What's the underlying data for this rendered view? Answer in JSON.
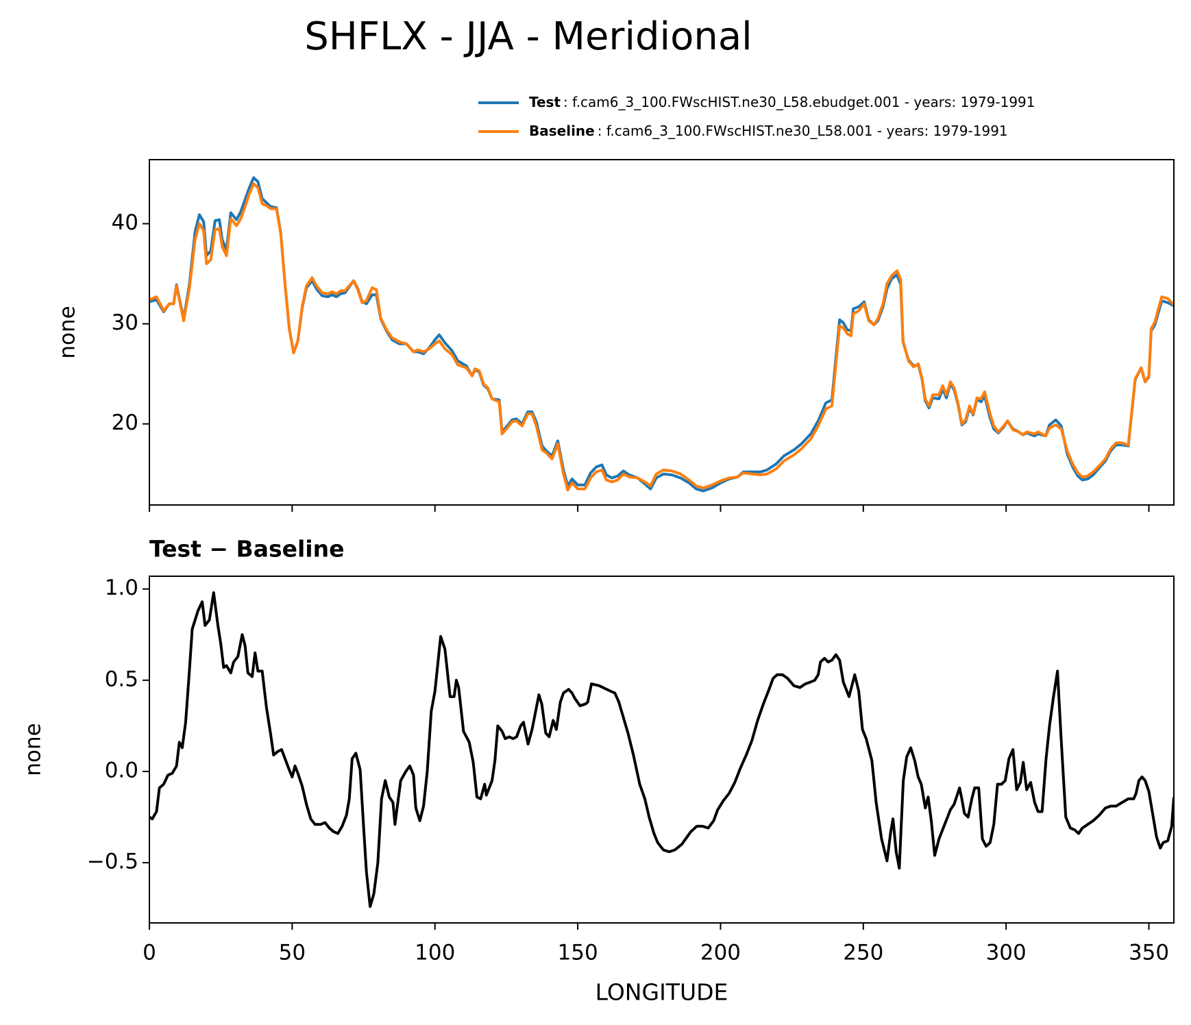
{
  "chart_data": [
    {
      "type": "line",
      "title": "SHFLX - JJA - Meridional",
      "ylabel": "none",
      "xlim": [
        0,
        358.75
      ],
      "xticks": [
        0,
        50,
        100,
        150,
        200,
        250,
        300,
        350
      ],
      "ylim": [
        11.9,
        46.4
      ],
      "yticks": [
        20,
        30,
        40
      ],
      "x": [
        0,
        2.5,
        5,
        7,
        8.5,
        9.5,
        12,
        14,
        16,
        17.5,
        19,
        20,
        21.5,
        23,
        24.5,
        25.5,
        27,
        28.5,
        30.5,
        32,
        33.5,
        35,
        36.5,
        38,
        39.5,
        41,
        42.5,
        44.5,
        46,
        47.5,
        49,
        50.5,
        52,
        53.5,
        55,
        57,
        58.5,
        60.5,
        62.5,
        64,
        65.5,
        67,
        68.5,
        70,
        71.5,
        73,
        74.5,
        76,
        78,
        79.5,
        81,
        83,
        85,
        87.5,
        90,
        92.5,
        94,
        96,
        98,
        100,
        101.5,
        103.5,
        106,
        108,
        111,
        113,
        114,
        115.5,
        117,
        118.5,
        120,
        122.5,
        123.5,
        125,
        127,
        128.5,
        130.5,
        132.5,
        134,
        135.5,
        137.5,
        139,
        141,
        143,
        145,
        146.5,
        148,
        150,
        152.5,
        154.5,
        156.5,
        158.5,
        160,
        162,
        164,
        166,
        168,
        171,
        173.5,
        175.5,
        177.5,
        180,
        183,
        186,
        189,
        191.5,
        194,
        197,
        200,
        203,
        206,
        208,
        211,
        214,
        216.3,
        219.5,
        222.2,
        225.7,
        228.3,
        231.6,
        234.2,
        236.9,
        239,
        240.4,
        241.7,
        243,
        244.4,
        245.7,
        246.5,
        248.4,
        250.3,
        251.9,
        253.7,
        255.1,
        256.9,
        258.3,
        259.9,
        261.8,
        263.1,
        263.9,
        265.8,
        267.6,
        269.3,
        270.6,
        271.7,
        273,
        274.3,
        276.5,
        277.8,
        279.1,
        280.5,
        281.8,
        283.2,
        284.5,
        285.8,
        287.2,
        288.5,
        289.8,
        291.2,
        292.5,
        294.4,
        295.7,
        297.3,
        299.2,
        300.5,
        302.4,
        304.5,
        305.9,
        307.2,
        309.9,
        311.2,
        313.9,
        315.2,
        317.4,
        319.3,
        321.4,
        323.3,
        325.1,
        326.7,
        328.6,
        330.5,
        332.6,
        334.8,
        336.6,
        338.5,
        340.6,
        342.8,
        345.2,
        347.3,
        348.7,
        350,
        350.8,
        352.1,
        354.5,
        356.7,
        358.75
      ],
      "series": [
        {
          "name": "Test",
          "label": ": f.cam6_3_100.FWscHIST.ne30_L58.ebudget.001 - years: 1979-1991",
          "color": "#1f77b4",
          "values": [
            32.2,
            32.4,
            31.2,
            32.0,
            32.0,
            33.9,
            30.5,
            33.9,
            39.2,
            40.9,
            40.2,
            36.8,
            37.3,
            40.3,
            40.4,
            38.4,
            37.4,
            41.1,
            40.4,
            41.2,
            42.4,
            43.6,
            44.6,
            44.2,
            42.5,
            42.1,
            41.7,
            41.6,
            39.1,
            34.0,
            29.5,
            27.1,
            28.3,
            31.6,
            33.6,
            34.3,
            33.5,
            32.8,
            32.7,
            32.9,
            32.7,
            33.0,
            33.1,
            33.7,
            34.3,
            33.5,
            32.2,
            32.0,
            32.9,
            32.9,
            30.5,
            29.3,
            28.4,
            28.0,
            28.0,
            27.2,
            27.2,
            27.0,
            27.6,
            28.4,
            28.9,
            28.1,
            27.3,
            26.3,
            25.8,
            24.8,
            25.4,
            25.2,
            23.9,
            23.5,
            22.5,
            22.4,
            19.2,
            19.7,
            20.4,
            20.5,
            20.0,
            21.2,
            21.2,
            20.2,
            17.8,
            17.3,
            16.8,
            18.3,
            15.4,
            13.8,
            14.5,
            13.9,
            13.9,
            15.1,
            15.7,
            15.9,
            14.9,
            14.6,
            14.8,
            15.3,
            14.9,
            14.6,
            14.0,
            13.5,
            14.6,
            15.0,
            14.9,
            14.6,
            14.1,
            13.5,
            13.3,
            13.6,
            14.1,
            14.5,
            14.7,
            15.2,
            15.2,
            15.2,
            15.4,
            16.0,
            16.8,
            17.4,
            18.0,
            19.0,
            20.3,
            22.1,
            22.4,
            26.6,
            30.4,
            30.1,
            29.4,
            29.3,
            31.5,
            31.7,
            32.2,
            30.4,
            29.9,
            30.3,
            31.7,
            33.5,
            34.5,
            34.9,
            33.9,
            28.2,
            26.4,
            25.8,
            25.9,
            24.4,
            22.3,
            21.6,
            22.6,
            22.5,
            23.5,
            22.6,
            24.0,
            23.4,
            21.9,
            19.9,
            20.2,
            21.6,
            20.9,
            22.5,
            22.2,
            22.8,
            20.6,
            19.5,
            19.1,
            19.7,
            20.3,
            19.5,
            19.2,
            18.9,
            19.1,
            18.8,
            19.0,
            18.8,
            19.9,
            20.4,
            19.8,
            17.0,
            15.7,
            14.8,
            14.4,
            14.5,
            14.9,
            15.6,
            16.3,
            17.3,
            17.9,
            17.9,
            17.8,
            24.4,
            25.6,
            24.2,
            24.7,
            29.3,
            29.9,
            32.3,
            32.1,
            31.8
          ]
        },
        {
          "name": "Baseline",
          "label": ": f.cam6_3_100.FWscHIST.ne30_L58.001 - years: 1979-1991",
          "color": "#ff7f0e",
          "values": [
            32.4,
            32.7,
            31.3,
            32.0,
            32.0,
            33.8,
            30.3,
            33.5,
            38.4,
            40.0,
            39.3,
            36.0,
            36.4,
            39.4,
            39.5,
            37.7,
            36.8,
            40.5,
            39.8,
            40.5,
            41.7,
            43.0,
            44.0,
            43.6,
            42.0,
            41.8,
            41.5,
            41.5,
            39.0,
            34.0,
            29.5,
            27.1,
            28.3,
            31.7,
            33.8,
            34.6,
            33.8,
            33.1,
            33.0,
            33.2,
            33.0,
            33.3,
            33.3,
            33.8,
            34.3,
            33.4,
            32.1,
            32.3,
            33.6,
            33.4,
            30.6,
            29.4,
            28.6,
            28.2,
            28.0,
            27.2,
            27.4,
            27.2,
            27.5,
            28.0,
            28.3,
            27.5,
            26.9,
            25.9,
            25.6,
            24.8,
            25.5,
            25.3,
            24.0,
            23.6,
            22.5,
            22.2,
            19.0,
            19.5,
            20.2,
            20.3,
            19.8,
            21.0,
            21.0,
            19.8,
            17.4,
            17.1,
            16.5,
            18.0,
            15.0,
            13.4,
            14.1,
            13.5,
            13.5,
            14.6,
            15.2,
            15.4,
            14.4,
            14.2,
            14.4,
            15.0,
            14.7,
            14.6,
            14.2,
            13.8,
            15.0,
            15.4,
            15.3,
            15.0,
            14.4,
            13.8,
            13.6,
            13.9,
            14.3,
            14.6,
            14.7,
            15.1,
            15.0,
            14.9,
            15.0,
            15.5,
            16.3,
            16.9,
            17.5,
            18.5,
            19.8,
            21.5,
            21.8,
            26.0,
            29.8,
            29.6,
            29.0,
            28.8,
            31.0,
            31.3,
            32.0,
            30.3,
            29.9,
            30.5,
            32.0,
            34.0,
            34.8,
            35.3,
            34.4,
            28.3,
            26.3,
            25.7,
            26.0,
            24.5,
            22.5,
            21.8,
            22.9,
            22.9,
            23.8,
            22.9,
            24.2,
            23.6,
            22.0,
            20.0,
            20.4,
            21.8,
            21.0,
            22.6,
            22.5,
            23.2,
            21.0,
            19.8,
            19.2,
            19.8,
            20.3,
            19.4,
            19.2,
            18.9,
            19.2,
            19.0,
            19.2,
            18.8,
            19.6,
            19.9,
            19.5,
            17.3,
            16.0,
            15.1,
            14.7,
            14.8,
            15.2,
            15.8,
            16.5,
            17.5,
            18.1,
            18.1,
            17.9,
            24.5,
            25.6,
            24.2,
            24.8,
            29.5,
            30.2,
            32.7,
            32.5,
            31.9
          ]
        }
      ]
    },
    {
      "type": "line",
      "title": "Test − Baseline",
      "ylabel": "none",
      "xlabel": "LONGITUDE",
      "color": "#000000",
      "xlim": [
        0,
        358.75
      ],
      "xticks": [
        0,
        50,
        100,
        150,
        200,
        250,
        300,
        350
      ],
      "ylim": [
        -0.83,
        1.07
      ],
      "yticks": [
        {
          "value": -0.5,
          "label": "−0.5"
        },
        {
          "value": 0,
          "label": "0.0"
        },
        {
          "value": 0.5,
          "label": "0.5"
        },
        {
          "value": 1,
          "label": "1.0"
        }
      ],
      "x": [
        0,
        1,
        2.5,
        3.5,
        5,
        6.5,
        8,
        9.5,
        10.5,
        11.5,
        12.7,
        14,
        15,
        17,
        18.5,
        19.5,
        21,
        22.5,
        24,
        25,
        26,
        27,
        28.5,
        29.5,
        31,
        32.5,
        33.5,
        34.5,
        36,
        37,
        38,
        39.5,
        41,
        42.5,
        43.5,
        45,
        46.3,
        47.5,
        48.7,
        50,
        51,
        52,
        53.5,
        55,
        56.5,
        58,
        60,
        61.5,
        63,
        64.5,
        66,
        67.5,
        69,
        70,
        71,
        72.3,
        73.8,
        75,
        76,
        77.3,
        78.6,
        80,
        81.3,
        82.6,
        84,
        85.3,
        86,
        88,
        89.8,
        91.2,
        92.5,
        93.3,
        94.7,
        96,
        97.3,
        98.7,
        100,
        102,
        103.5,
        105.3,
        106.7,
        107.5,
        108.3,
        110,
        112,
        113.4,
        114.7,
        116,
        117.4,
        118,
        120,
        121,
        122,
        123.5,
        124.6,
        126,
        127.3,
        128.6,
        130,
        131,
        132.6,
        134,
        136.4,
        137.4,
        138.8,
        140,
        141.4,
        142.5,
        143.9,
        145,
        146.8,
        148,
        149,
        150.8,
        152.7,
        153.5,
        154.8,
        157.5,
        161.5,
        163,
        164.4,
        167.6,
        169.5,
        171.7,
        173.5,
        175,
        176.7,
        178,
        180,
        182,
        184,
        186.4,
        189.6,
        191.7,
        193.6,
        195.7,
        197.6,
        199,
        201,
        203,
        205,
        207,
        209,
        211,
        213,
        215,
        217,
        218.4,
        219.8,
        221.7,
        223.5,
        225.7,
        227.8,
        229.7,
        231.5,
        233,
        234.2,
        235,
        236.4,
        237.7,
        239,
        240.4,
        241.7,
        243,
        245,
        246.5,
        247,
        248.4,
        249.7,
        251,
        253,
        254.5,
        256.4,
        258.3,
        259.6,
        260.4,
        261.5,
        262.6,
        264,
        265.2,
        266.6,
        268,
        269.2,
        270.3,
        271.7,
        272.7,
        273.8,
        275,
        276.5,
        278,
        279,
        280.5,
        281.8,
        283.7,
        284.5,
        285.4,
        286.7,
        288,
        289,
        290.4,
        291.7,
        293,
        294.4,
        295.7,
        297,
        298.4,
        299.7,
        301,
        302.4,
        303.7,
        305,
        306,
        307.2,
        308.6,
        310,
        311.2,
        312.6,
        314,
        315.2,
        316.6,
        318,
        319.2,
        320.9,
        322.5,
        324,
        325.4,
        326.7,
        328.6,
        330.5,
        332.6,
        334.8,
        336.6,
        338.5,
        340.6,
        342.8,
        344.7,
        345.5,
        346.5,
        347.6,
        348.7,
        350,
        351.3,
        352.7,
        354,
        355,
        356.6,
        358,
        358.75
      ],
      "values": [
        -0.25,
        -0.26,
        -0.22,
        -0.09,
        -0.07,
        -0.02,
        -0.01,
        0.03,
        0.16,
        0.13,
        0.27,
        0.55,
        0.78,
        0.88,
        0.93,
        0.8,
        0.83,
        0.98,
        0.8,
        0.7,
        0.57,
        0.58,
        0.54,
        0.6,
        0.63,
        0.75,
        0.69,
        0.54,
        0.52,
        0.65,
        0.55,
        0.55,
        0.35,
        0.2,
        0.09,
        0.11,
        0.12,
        0.07,
        0.02,
        -0.03,
        0.03,
        -0.01,
        -0.08,
        -0.18,
        -0.26,
        -0.29,
        -0.29,
        -0.28,
        -0.31,
        -0.33,
        -0.34,
        -0.3,
        -0.24,
        -0.15,
        0.07,
        0.1,
        0.01,
        -0.3,
        -0.55,
        -0.74,
        -0.67,
        -0.5,
        -0.15,
        -0.05,
        -0.14,
        -0.17,
        -0.29,
        -0.05,
        0.0,
        0.03,
        -0.02,
        -0.2,
        -0.27,
        -0.19,
        0.0,
        0.33,
        0.44,
        0.74,
        0.67,
        0.41,
        0.41,
        0.5,
        0.46,
        0.22,
        0.16,
        0.05,
        -0.14,
        -0.15,
        -0.07,
        -0.13,
        -0.05,
        0.06,
        0.25,
        0.22,
        0.18,
        0.19,
        0.18,
        0.19,
        0.25,
        0.27,
        0.15,
        0.23,
        0.42,
        0.37,
        0.21,
        0.19,
        0.28,
        0.23,
        0.38,
        0.43,
        0.45,
        0.43,
        0.4,
        0.36,
        0.37,
        0.38,
        0.48,
        0.47,
        0.44,
        0.43,
        0.38,
        0.21,
        0.09,
        -0.07,
        -0.15,
        -0.25,
        -0.34,
        -0.39,
        -0.43,
        -0.44,
        -0.43,
        -0.4,
        -0.33,
        -0.3,
        -0.3,
        -0.31,
        -0.27,
        -0.21,
        -0.16,
        -0.12,
        -0.06,
        0.02,
        0.09,
        0.17,
        0.28,
        0.37,
        0.45,
        0.51,
        0.53,
        0.53,
        0.51,
        0.47,
        0.46,
        0.48,
        0.49,
        0.5,
        0.53,
        0.6,
        0.62,
        0.6,
        0.61,
        0.64,
        0.61,
        0.49,
        0.41,
        0.5,
        0.53,
        0.44,
        0.23,
        0.18,
        0.06,
        -0.17,
        -0.37,
        -0.49,
        -0.33,
        -0.26,
        -0.44,
        -0.53,
        -0.05,
        0.08,
        0.13,
        0.06,
        -0.03,
        -0.07,
        -0.2,
        -0.14,
        -0.27,
        -0.46,
        -0.37,
        -0.31,
        -0.27,
        -0.21,
        -0.18,
        -0.09,
        -0.15,
        -0.23,
        -0.25,
        -0.15,
        -0.09,
        -0.09,
        -0.37,
        -0.41,
        -0.39,
        -0.29,
        -0.07,
        -0.07,
        -0.05,
        0.07,
        0.12,
        -0.1,
        -0.06,
        0.05,
        -0.1,
        -0.06,
        -0.17,
        -0.22,
        -0.22,
        0.07,
        0.25,
        0.41,
        0.55,
        0.2,
        -0.25,
        -0.31,
        -0.32,
        -0.34,
        -0.31,
        -0.29,
        -0.27,
        -0.24,
        -0.2,
        -0.19,
        -0.19,
        -0.17,
        -0.15,
        -0.15,
        -0.12,
        -0.05,
        -0.03,
        -0.05,
        -0.11,
        -0.23,
        -0.36,
        -0.42,
        -0.39,
        -0.38,
        -0.3,
        -0.14
      ]
    }
  ]
}
